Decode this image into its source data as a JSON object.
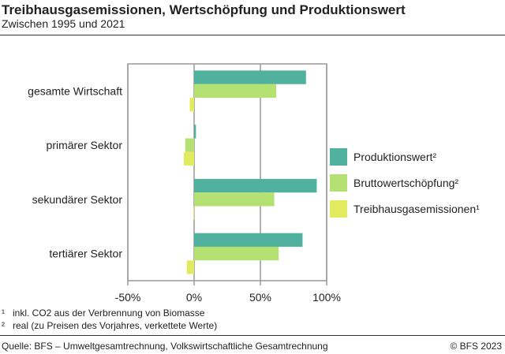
{
  "title": "Treibhausgasemissionen, Wertschöpfung und Produktionswert",
  "subtitle": "Zwischen 1995 und 2021",
  "footnotes": [
    {
      "mark": "¹",
      "text": "inkl. CO2 aus der Verbrennung von Biomasse"
    },
    {
      "mark": "²",
      "text": "real (zu Preisen des Vorjahres, verkettete Werte)"
    }
  ],
  "source": "Quelle: BFS – Umweltgesamtrechnung, Volkswirtschaftliche Gesamtrechnung",
  "copyright": "© BFS 2023",
  "chart_data": {
    "type": "bar",
    "orientation": "horizontal",
    "categories": [
      "gesamte Wirtschaft",
      "primärer Sektor",
      "sekundärer Sektor",
      "tertiärer Sektor"
    ],
    "series": [
      {
        "name": "Produktionswert²",
        "color": "#50b19e",
        "values": [
          84.4,
          1.4,
          92.5,
          81.8
        ]
      },
      {
        "name": "Bruttowertschöpfung²",
        "color": "#b5e172",
        "values": [
          62,
          -6.7,
          60.5,
          63.8
        ]
      },
      {
        "name": "Treibhausgasemissionen¹",
        "color": "#e2ea60",
        "values": [
          -3.3,
          -7.8,
          -0.3,
          -5.5
        ]
      }
    ],
    "xlim": [
      -50,
      100
    ],
    "xticks": [
      -50,
      0,
      50,
      100
    ],
    "xtick_labels": [
      "-50%",
      "0%",
      "50%",
      "100%"
    ],
    "grid": true,
    "legend": "right"
  }
}
